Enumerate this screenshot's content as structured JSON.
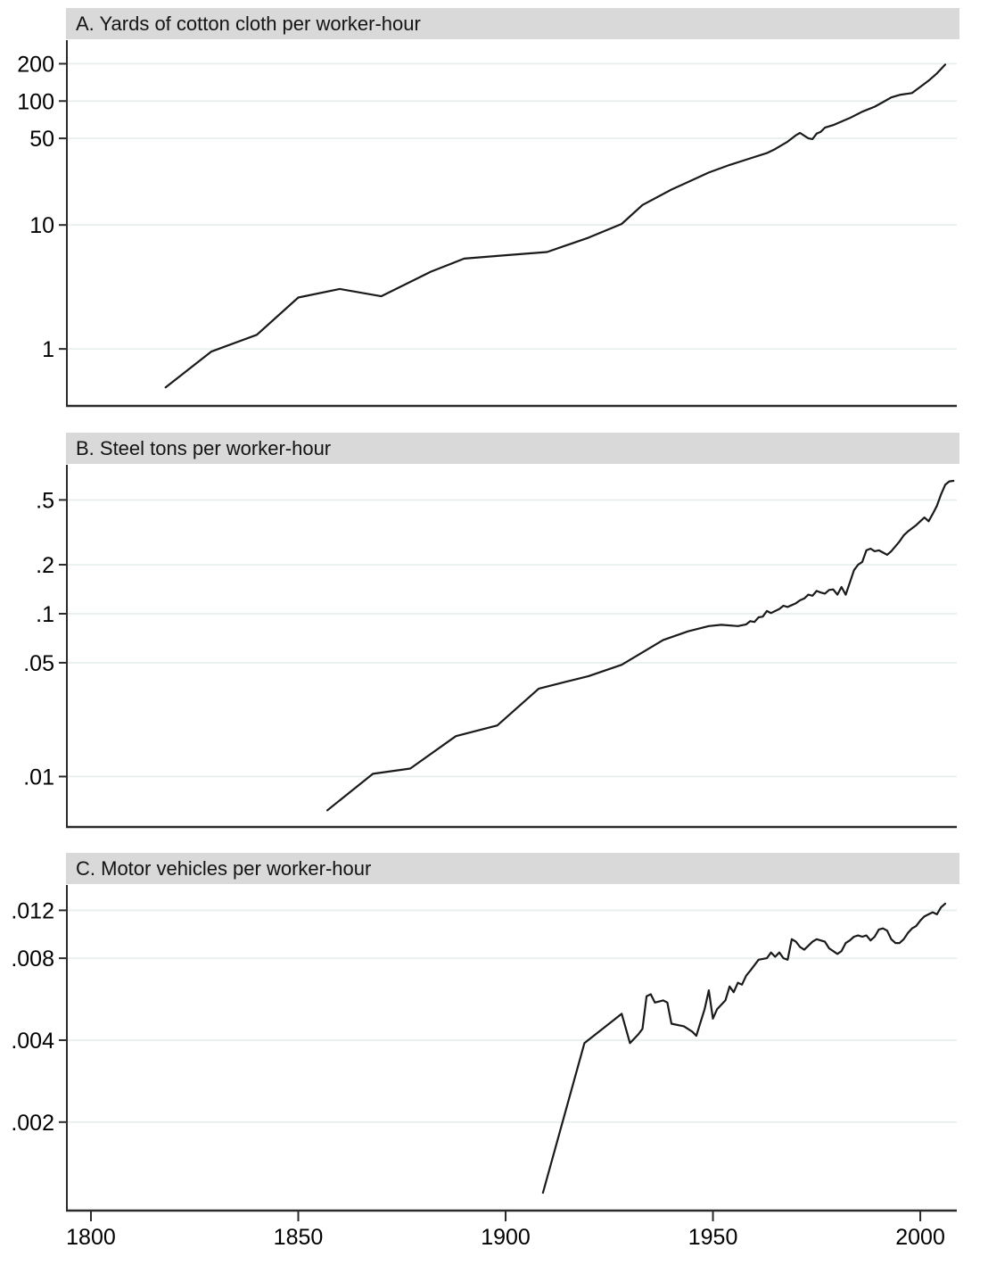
{
  "figure": {
    "background": "#ffffff",
    "banner_bg": "#d9d9d9",
    "grid_color": "#e6edec",
    "axis_color": "#2a2a2a",
    "line_color": "#1a1a1a",
    "x_axis_shared": true
  },
  "chart_data": [
    {
      "type": "line",
      "title": "A. Yards of cotton cloth per worker-hour",
      "xlabel": "",
      "ylabel": "",
      "ylog": true,
      "grid": true,
      "legend": "none",
      "xlim": [
        1794.2,
        2008.8
      ],
      "ylim": [
        0.347,
        310
      ],
      "yticks": [
        200,
        100,
        50,
        10,
        1
      ],
      "ytick_labels": [
        "200",
        "100",
        "50",
        "10",
        "1"
      ],
      "series": [
        {
          "name": "Yards of cotton cloth per worker-hour",
          "points": [
            [
              1818,
              0.49
            ],
            [
              1829,
              0.95
            ],
            [
              1840,
              1.3
            ],
            [
              1850,
              2.6
            ],
            [
              1860,
              3.05
            ],
            [
              1870,
              2.66
            ],
            [
              1882,
              4.2
            ],
            [
              1890,
              5.35
            ],
            [
              1900,
              5.7
            ],
            [
              1910,
              6.05
            ],
            [
              1920,
              7.9
            ],
            [
              1928,
              10.2
            ],
            [
              1933,
              14.5
            ],
            [
              1940,
              19.3
            ],
            [
              1949,
              26.5
            ],
            [
              1954,
              30.5
            ],
            [
              1959,
              34.5
            ],
            [
              1963,
              38.0
            ],
            [
              1965,
              41.0
            ],
            [
              1968,
              47.0
            ],
            [
              1970,
              53.0
            ],
            [
              1971,
              55.3
            ],
            [
              1973,
              50.0
            ],
            [
              1974,
              49.3
            ],
            [
              1975,
              54.6
            ],
            [
              1976,
              56.5
            ],
            [
              1977,
              61.0
            ],
            [
              1979,
              64.0
            ],
            [
              1983,
              73.0
            ],
            [
              1986,
              82.0
            ],
            [
              1989,
              90.0
            ],
            [
              1991,
              98.0
            ],
            [
              1993,
              107
            ],
            [
              1995,
              112
            ],
            [
              1998,
              116
            ],
            [
              2000,
              130
            ],
            [
              2002,
              146
            ],
            [
              2004,
              167
            ],
            [
              2006,
              197
            ]
          ]
        }
      ]
    },
    {
      "type": "line",
      "title": "B. Steel tons per worker-hour",
      "xlabel": "",
      "ylabel": "",
      "ylog": true,
      "grid": true,
      "legend": "none",
      "xlim": [
        1794.2,
        2008.8
      ],
      "ylim": [
        0.0049,
        0.822
      ],
      "yticks": [
        0.5,
        0.2,
        0.1,
        0.05,
        0.01
      ],
      "ytick_labels": [
        ".5",
        ".2",
        ".1",
        ".05",
        ".01"
      ],
      "series": [
        {
          "name": "Steel tons per worker-hour",
          "points": [
            [
              1857,
              0.0062
            ],
            [
              1868,
              0.0104
            ],
            [
              1877,
              0.0112
            ],
            [
              1888,
              0.0177
            ],
            [
              1898,
              0.0206
            ],
            [
              1908,
              0.0347
            ],
            [
              1920,
              0.0414
            ],
            [
              1928,
              0.0486
            ],
            [
              1938,
              0.069
            ],
            [
              1944,
              0.078
            ],
            [
              1949,
              0.084
            ],
            [
              1952,
              0.0855
            ],
            [
              1956,
              0.084
            ],
            [
              1958,
              0.086
            ],
            [
              1959,
              0.09
            ],
            [
              1960,
              0.089
            ],
            [
              1961,
              0.095
            ],
            [
              1962,
              0.096
            ],
            [
              1963,
              0.104
            ],
            [
              1964,
              0.101
            ],
            [
              1966,
              0.107
            ],
            [
              1967,
              0.112
            ],
            [
              1968,
              0.11
            ],
            [
              1970,
              0.116
            ],
            [
              1971,
              0.121
            ],
            [
              1972,
              0.124
            ],
            [
              1973,
              0.131
            ],
            [
              1974,
              0.129
            ],
            [
              1975,
              0.138
            ],
            [
              1976,
              0.135
            ],
            [
              1977,
              0.133
            ],
            [
              1978,
              0.14
            ],
            [
              1979,
              0.141
            ],
            [
              1980,
              0.131
            ],
            [
              1981,
              0.146
            ],
            [
              1982,
              0.131
            ],
            [
              1983,
              0.155
            ],
            [
              1984,
              0.185
            ],
            [
              1985,
              0.2
            ],
            [
              1986,
              0.208
            ],
            [
              1987,
              0.245
            ],
            [
              1988,
              0.251
            ],
            [
              1989,
              0.242
            ],
            [
              1990,
              0.245
            ],
            [
              1992,
              0.23
            ],
            [
              1993,
              0.242
            ],
            [
              1995,
              0.278
            ],
            [
              1996,
              0.303
            ],
            [
              1997,
              0.32
            ],
            [
              1999,
              0.35
            ],
            [
              2000,
              0.37
            ],
            [
              2001,
              0.39
            ],
            [
              2002,
              0.37
            ],
            [
              2003,
              0.41
            ],
            [
              2004,
              0.46
            ],
            [
              2005,
              0.54
            ],
            [
              2006,
              0.62
            ],
            [
              2007,
              0.65
            ],
            [
              2008,
              0.655
            ]
          ]
        }
      ]
    },
    {
      "type": "line",
      "title": "C. Motor vehicles per worker-hour",
      "xlabel": "",
      "ylabel": "",
      "ylog": true,
      "grid": true,
      "legend": "none",
      "xlim": [
        1794.2,
        2008.8
      ],
      "ylim": [
        0.000946,
        0.01487
      ],
      "yticks": [
        0.012,
        0.008,
        0.004,
        0.002
      ],
      "ytick_labels": [
        ".012",
        ".008",
        ".004",
        ".002"
      ],
      "xticks": [
        1800,
        1850,
        1900,
        1950,
        2000
      ],
      "xtick_labels": [
        "1800",
        "1850",
        "1900",
        "1950",
        "2000"
      ],
      "series": [
        {
          "name": "Motor vehicles per worker-hour",
          "points": [
            [
              1909,
              0.0011
            ],
            [
              1919,
              0.0039
            ],
            [
              1928,
              0.005
            ],
            [
              1930,
              0.0039
            ],
            [
              1932,
              0.0042
            ],
            [
              1933,
              0.0044
            ],
            [
              1934,
              0.0058
            ],
            [
              1935,
              0.0059
            ],
            [
              1936,
              0.0055
            ],
            [
              1938,
              0.0056
            ],
            [
              1939,
              0.0055
            ],
            [
              1940,
              0.0046
            ],
            [
              1943,
              0.0045
            ],
            [
              1945,
              0.0043
            ],
            [
              1946,
              0.00415
            ],
            [
              1948,
              0.0052
            ],
            [
              1949,
              0.0061
            ],
            [
              1950,
              0.0048
            ],
            [
              1951,
              0.0052
            ],
            [
              1953,
              0.0056
            ],
            [
              1954,
              0.0063
            ],
            [
              1955,
              0.006
            ],
            [
              1956,
              0.0065
            ],
            [
              1957,
              0.0064
            ],
            [
              1958,
              0.0069
            ],
            [
              1959,
              0.0072
            ],
            [
              1961,
              0.0079
            ],
            [
              1963,
              0.008
            ],
            [
              1964,
              0.0084
            ],
            [
              1965,
              0.0081
            ],
            [
              1966,
              0.0084
            ],
            [
              1967,
              0.008
            ],
            [
              1968,
              0.0079
            ],
            [
              1969,
              0.0094
            ],
            [
              1970,
              0.0092
            ],
            [
              1971,
              0.0088
            ],
            [
              1972,
              0.0086
            ],
            [
              1974,
              0.0092
            ],
            [
              1975,
              0.0094
            ],
            [
              1976,
              0.0093
            ],
            [
              1977,
              0.0092
            ],
            [
              1978,
              0.0087
            ],
            [
              1980,
              0.0083
            ],
            [
              1981,
              0.0085
            ],
            [
              1982,
              0.0091
            ],
            [
              1983,
              0.0093
            ],
            [
              1984,
              0.0096
            ],
            [
              1985,
              0.0097
            ],
            [
              1986,
              0.0096
            ],
            [
              1987,
              0.0097
            ],
            [
              1988,
              0.0093
            ],
            [
              1989,
              0.0096
            ],
            [
              1990,
              0.0102
            ],
            [
              1991,
              0.0103
            ],
            [
              1992,
              0.0101
            ],
            [
              1993,
              0.0094
            ],
            [
              1994,
              0.0091
            ],
            [
              1995,
              0.0091
            ],
            [
              1996,
              0.0094
            ],
            [
              1997,
              0.0099
            ],
            [
              1998,
              0.0103
            ],
            [
              1999,
              0.0105
            ],
            [
              2000,
              0.011
            ],
            [
              2001,
              0.0114
            ],
            [
              2002,
              0.0116
            ],
            [
              2003,
              0.0118
            ],
            [
              2004,
              0.0116
            ],
            [
              2005,
              0.0123
            ],
            [
              2006,
              0.0127
            ]
          ]
        }
      ]
    }
  ]
}
